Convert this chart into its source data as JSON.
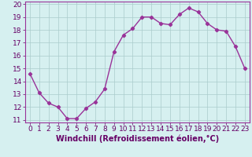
{
  "x": [
    0,
    1,
    2,
    3,
    4,
    5,
    6,
    7,
    8,
    9,
    10,
    11,
    12,
    13,
    14,
    15,
    16,
    17,
    18,
    19,
    20,
    21,
    22,
    23
  ],
  "y": [
    14.6,
    13.1,
    12.3,
    12.0,
    11.1,
    11.1,
    11.9,
    12.4,
    13.4,
    16.3,
    17.6,
    18.1,
    19.0,
    19.0,
    18.5,
    18.4,
    19.2,
    19.7,
    19.4,
    18.5,
    18.0,
    17.9,
    16.7,
    15.0
  ],
  "line_color": "#993399",
  "marker": "D",
  "marker_size": 2.2,
  "line_width": 1.0,
  "bg_color": "#d6f0f0",
  "grid_color": "#aacccc",
  "xlabel": "Windchill (Refroidissement éolien,°C)",
  "xlabel_fontsize": 7,
  "tick_fontsize": 6.5,
  "ylim": [
    11,
    20
  ],
  "xlim": [
    -0.5,
    23.5
  ],
  "yticks": [
    11,
    12,
    13,
    14,
    15,
    16,
    17,
    18,
    19,
    20
  ],
  "xticks": [
    0,
    1,
    2,
    3,
    4,
    5,
    6,
    7,
    8,
    9,
    10,
    11,
    12,
    13,
    14,
    15,
    16,
    17,
    18,
    19,
    20,
    21,
    22,
    23
  ]
}
